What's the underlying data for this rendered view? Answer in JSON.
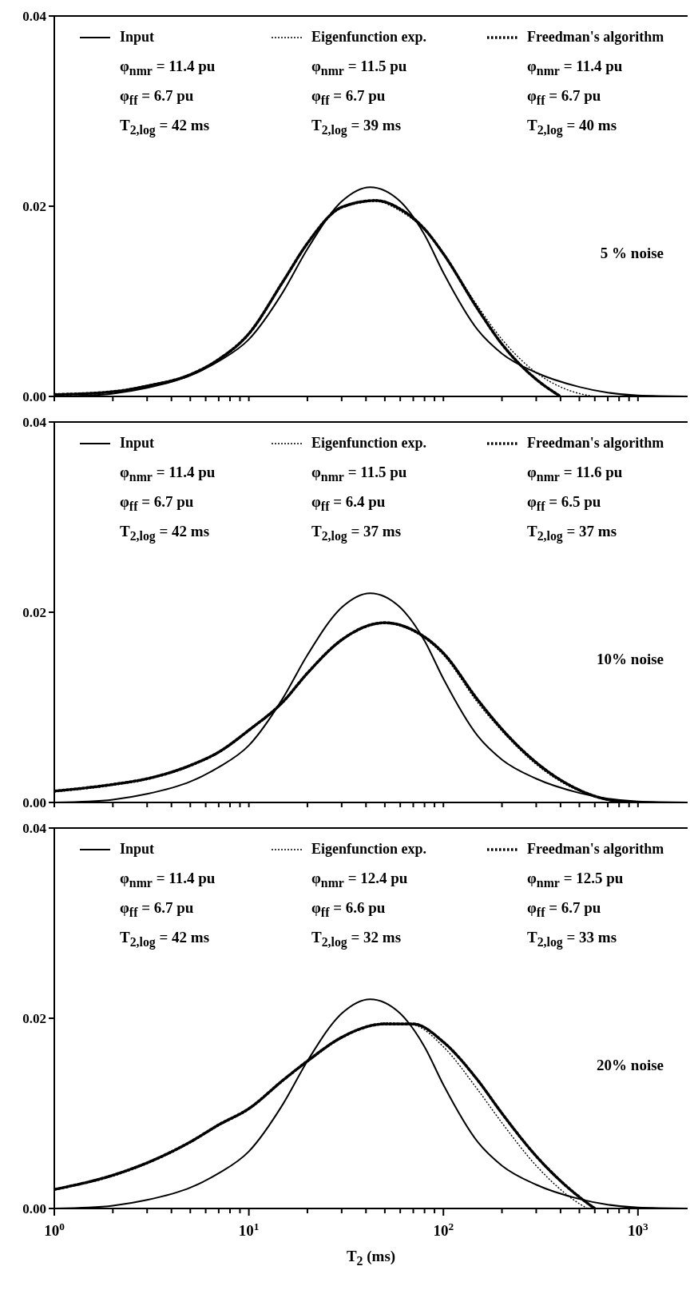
{
  "chart_data": [
    {
      "type": "line",
      "xlim": [
        1,
        1800
      ],
      "ylim": [
        0,
        0.04
      ],
      "log": "x",
      "legend": "top",
      "tick_labels": "y",
      "xticks": [
        {
          "value": 1,
          "label": null
        },
        {
          "value": 2,
          "label": null
        },
        {
          "value": 3,
          "label": null
        },
        {
          "value": 4,
          "label": null
        },
        {
          "value": 5,
          "label": null
        },
        {
          "value": 6,
          "label": null
        },
        {
          "value": 7,
          "label": null
        },
        {
          "value": 8,
          "label": null
        },
        {
          "value": 9,
          "label": null
        },
        {
          "value": 10,
          "label": null
        },
        {
          "value": 20,
          "label": null
        },
        {
          "value": 30,
          "label": null
        },
        {
          "value": 40,
          "label": null
        },
        {
          "value": 50,
          "label": null
        },
        {
          "value": 60,
          "label": null
        },
        {
          "value": 70,
          "label": null
        },
        {
          "value": 80,
          "label": null
        },
        {
          "value": 90,
          "label": null
        },
        {
          "value": 100,
          "label": null
        },
        {
          "value": 200,
          "label": null
        },
        {
          "value": 300,
          "label": null
        },
        {
          "value": 400,
          "label": null
        },
        {
          "value": 500,
          "label": null
        },
        {
          "value": 600,
          "label": null
        },
        {
          "value": 700,
          "label": null
        },
        {
          "value": 800,
          "label": null
        },
        {
          "value": 900,
          "label": null
        },
        {
          "value": 1000,
          "label": null
        }
      ],
      "yticks": [
        {
          "value": 0,
          "label": "0.00"
        },
        {
          "value": 0.02,
          "label": "0.02"
        },
        {
          "value": 0.04,
          "label": "0.04"
        }
      ],
      "series": [
        {
          "name": "Input",
          "color": "#000000",
          "line_style": "solid",
          "x": [
            1,
            1.5,
            2,
            3,
            5,
            7,
            10,
            15,
            20,
            30,
            42,
            60,
            80,
            100,
            150,
            200,
            300,
            500,
            700,
            1000,
            1800
          ],
          "values": [
            0.0,
            0.0001,
            0.0003,
            0.0009,
            0.0022,
            0.0037,
            0.006,
            0.011,
            0.0155,
            0.0205,
            0.022,
            0.0205,
            0.017,
            0.013,
            0.007,
            0.0045,
            0.0025,
            0.001,
            0.0004,
            0.0001,
            0.0
          ]
        },
        {
          "name": "Eigenfunction exp.",
          "color": "#000000",
          "line_style": "dashed",
          "x": [
            1,
            2,
            3,
            5,
            7,
            10,
            15,
            20,
            30,
            45,
            60,
            80,
            100,
            150,
            200,
            300,
            400,
            500,
            600
          ],
          "values": [
            0.0002,
            0.0005,
            0.001,
            0.0022,
            0.0038,
            0.0065,
            0.012,
            0.016,
            0.0198,
            0.0205,
            0.0195,
            0.0175,
            0.015,
            0.0095,
            0.006,
            0.0025,
            0.001,
            0.0003,
            0.0
          ]
        },
        {
          "name": "Freedman's algorithm",
          "color": "#000000",
          "line_style": "dotted",
          "x": [
            1,
            2,
            3,
            5,
            7,
            10,
            15,
            20,
            30,
            45,
            60,
            80,
            100,
            150,
            200,
            300,
            400
          ],
          "values": [
            0.0002,
            0.0005,
            0.0011,
            0.0023,
            0.0039,
            0.0066,
            0.0121,
            0.0161,
            0.0199,
            0.0206,
            0.0197,
            0.0176,
            0.015,
            0.0092,
            0.0055,
            0.0018,
            0.0
          ]
        }
      ],
      "annotations": [
        "φ$_{nmr}$ = 11.4 pu",
        "φ$_{ff}$ = 6.7 pu",
        "T$_{2,log}$ = 42 ms",
        "φ$_{nmr}$ = 11.5 pu",
        "φ$_{ff}$ = 6.7 pu",
        "T$_{2,log}$ = 39 ms",
        "φ$_{nmr}$ = 11.4 pu",
        "φ$_{ff}$ = 6.7 pu",
        "T$_{2,log}$ = 40 ms",
        "5 % noise"
      ]
    },
    {
      "type": "line",
      "xlim": [
        1,
        1800
      ],
      "ylim": [
        0,
        0.04
      ],
      "log": "x",
      "legend": "top",
      "tick_labels": "y",
      "xticks": [
        {
          "value": 1,
          "label": null
        },
        {
          "value": 2,
          "label": null
        },
        {
          "value": 3,
          "label": null
        },
        {
          "value": 4,
          "label": null
        },
        {
          "value": 5,
          "label": null
        },
        {
          "value": 6,
          "label": null
        },
        {
          "value": 7,
          "label": null
        },
        {
          "value": 8,
          "label": null
        },
        {
          "value": 9,
          "label": null
        },
        {
          "value": 10,
          "label": null
        },
        {
          "value": 20,
          "label": null
        },
        {
          "value": 30,
          "label": null
        },
        {
          "value": 40,
          "label": null
        },
        {
          "value": 50,
          "label": null
        },
        {
          "value": 60,
          "label": null
        },
        {
          "value": 70,
          "label": null
        },
        {
          "value": 80,
          "label": null
        },
        {
          "value": 90,
          "label": null
        },
        {
          "value": 100,
          "label": null
        },
        {
          "value": 200,
          "label": null
        },
        {
          "value": 300,
          "label": null
        },
        {
          "value": 400,
          "label": null
        },
        {
          "value": 500,
          "label": null
        },
        {
          "value": 600,
          "label": null
        },
        {
          "value": 700,
          "label": null
        },
        {
          "value": 800,
          "label": null
        },
        {
          "value": 900,
          "label": null
        },
        {
          "value": 1000,
          "label": null
        }
      ],
      "yticks": [
        {
          "value": 0,
          "label": "0.00"
        },
        {
          "value": 0.02,
          "label": "0.02"
        },
        {
          "value": 0.04,
          "label": "0.04"
        }
      ],
      "series": [
        {
          "name": "Input",
          "color": "#000000",
          "line_style": "solid",
          "x": [
            1,
            1.5,
            2,
            3,
            5,
            7,
            10,
            15,
            20,
            30,
            42,
            60,
            80,
            100,
            150,
            200,
            300,
            500,
            700,
            1000,
            1800
          ],
          "values": [
            0.0,
            0.0001,
            0.0003,
            0.0009,
            0.0022,
            0.0037,
            0.006,
            0.011,
            0.0155,
            0.0205,
            0.022,
            0.0205,
            0.017,
            0.013,
            0.007,
            0.0045,
            0.0025,
            0.001,
            0.0004,
            0.0001,
            0.0
          ]
        },
        {
          "name": "Eigenfunction exp.",
          "color": "#000000",
          "line_style": "dashed",
          "x": [
            1,
            2,
            3,
            5,
            7,
            10,
            15,
            20,
            30,
            50,
            70,
            100,
            150,
            200,
            300,
            500,
            700,
            1000
          ],
          "values": [
            0.0011,
            0.0018,
            0.0024,
            0.0038,
            0.0052,
            0.0075,
            0.0105,
            0.0135,
            0.017,
            0.0188,
            0.018,
            0.0155,
            0.0105,
            0.0075,
            0.004,
            0.0012,
            0.0003,
            0.0
          ]
        },
        {
          "name": "Freedman's algorithm",
          "color": "#000000",
          "line_style": "dotted",
          "x": [
            1,
            2,
            3,
            5,
            7,
            10,
            15,
            20,
            30,
            50,
            70,
            100,
            150,
            200,
            300,
            500,
            700,
            1000
          ],
          "values": [
            0.0012,
            0.0019,
            0.0025,
            0.0039,
            0.0053,
            0.0076,
            0.0106,
            0.0136,
            0.0171,
            0.0189,
            0.0181,
            0.0157,
            0.0108,
            0.0077,
            0.0042,
            0.0013,
            0.0003,
            0.0
          ]
        }
      ],
      "annotations": [
        "φ$_{nmr}$ = 11.4 pu",
        "φ$_{ff}$ = 6.7 pu",
        "T$_{2,log}$ = 42 ms",
        "φ$_{nmr}$ = 11.5 pu",
        "φ$_{ff}$ = 6.4 pu",
        "T$_{2,log}$ = 37 ms",
        "φ$_{nmr}$ = 11.6 pu",
        "φ$_{ff}$ = 6.5 pu",
        "T$_{2,log}$ = 37 ms",
        "10% noise"
      ]
    },
    {
      "type": "line",
      "xlim": [
        1,
        1800
      ],
      "ylim": [
        0,
        0.04
      ],
      "log": "x",
      "legend": "top",
      "xlabel": "T$_{2}$ (ms)",
      "xticks": [
        {
          "value": 1,
          "label": "10$^{0}$"
        },
        {
          "value": 2,
          "label": null
        },
        {
          "value": 3,
          "label": null
        },
        {
          "value": 4,
          "label": null
        },
        {
          "value": 5,
          "label": null
        },
        {
          "value": 6,
          "label": null
        },
        {
          "value": 7,
          "label": null
        },
        {
          "value": 8,
          "label": null
        },
        {
          "value": 9,
          "label": null
        },
        {
          "value": 10,
          "label": "10$^{1}$"
        },
        {
          "value": 20,
          "label": null
        },
        {
          "value": 30,
          "label": null
        },
        {
          "value": 40,
          "label": null
        },
        {
          "value": 50,
          "label": null
        },
        {
          "value": 60,
          "label": null
        },
        {
          "value": 70,
          "label": null
        },
        {
          "value": 80,
          "label": null
        },
        {
          "value": 90,
          "label": null
        },
        {
          "value": 100,
          "label": "10$^{2}$"
        },
        {
          "value": 200,
          "label": null
        },
        {
          "value": 300,
          "label": null
        },
        {
          "value": 400,
          "label": null
        },
        {
          "value": 500,
          "label": null
        },
        {
          "value": 600,
          "label": null
        },
        {
          "value": 700,
          "label": null
        },
        {
          "value": 800,
          "label": null
        },
        {
          "value": 900,
          "label": null
        },
        {
          "value": 1000,
          "label": "10$^{3}$"
        }
      ],
      "yticks": [
        {
          "value": 0,
          "label": "0.00"
        },
        {
          "value": 0.02,
          "label": "0.02"
        },
        {
          "value": 0.04,
          "label": "0.04"
        }
      ],
      "series": [
        {
          "name": "Input",
          "color": "#000000",
          "line_style": "solid",
          "x": [
            1,
            1.5,
            2,
            3,
            5,
            7,
            10,
            15,
            20,
            30,
            42,
            60,
            80,
            100,
            150,
            200,
            300,
            500,
            700,
            1000,
            1800
          ],
          "values": [
            0.0,
            0.0001,
            0.0003,
            0.0009,
            0.0022,
            0.0037,
            0.006,
            0.011,
            0.0155,
            0.0205,
            0.022,
            0.0205,
            0.017,
            0.013,
            0.007,
            0.0045,
            0.0025,
            0.001,
            0.0004,
            0.0001,
            0.0
          ]
        },
        {
          "name": "Eigenfunction exp.",
          "color": "#000000",
          "line_style": "dashed",
          "x": [
            1,
            2,
            3,
            5,
            7,
            10,
            15,
            20,
            30,
            50,
            70,
            100,
            150,
            200,
            300,
            500,
            550
          ],
          "values": [
            0.002,
            0.0034,
            0.0047,
            0.0069,
            0.0087,
            0.0104,
            0.0134,
            0.0154,
            0.0179,
            0.0195,
            0.0193,
            0.017,
            0.0125,
            0.009,
            0.0045,
            0.0005,
            0.0
          ]
        },
        {
          "name": "Freedman's algorithm",
          "color": "#000000",
          "line_style": "dotted",
          "x": [
            1,
            2,
            3,
            5,
            7,
            10,
            15,
            20,
            30,
            50,
            70,
            100,
            150,
            200,
            300,
            500,
            600
          ],
          "values": [
            0.002,
            0.0035,
            0.0048,
            0.007,
            0.0088,
            0.0105,
            0.0135,
            0.0155,
            0.018,
            0.0194,
            0.0194,
            0.0175,
            0.0135,
            0.01,
            0.0055,
            0.0012,
            0.0
          ]
        }
      ],
      "annotations": [
        "φ$_{nmr}$ = 11.4 pu",
        "φ$_{ff}$ = 6.7 pu",
        "T$_{2,log}$ = 42 ms",
        "φ$_{nmr}$ = 12.4 pu",
        "φ$_{ff}$ = 6.6 pu",
        "T$_{2,log}$ = 32 ms",
        "φ$_{nmr}$ = 12.5 pu",
        "φ$_{ff}$ = 6.7 pu",
        "T$_{2,log}$ = 33 ms",
        "20% noise"
      ]
    }
  ]
}
